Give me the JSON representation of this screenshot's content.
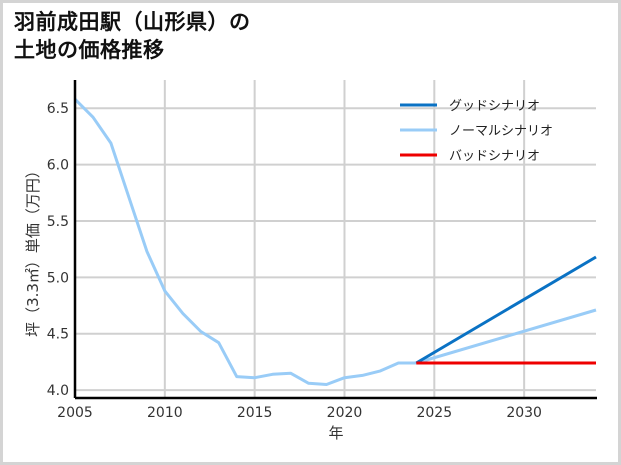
{
  "title_lines": [
    "羽前成田駅（山形県）の",
    "土地の価格推移"
  ],
  "chart_data": {
    "type": "line",
    "title": "羽前成田駅（山形県）の土地の価格推移",
    "xlabel": "年",
    "ylabel": "坪（3.3㎡）単価（万円）",
    "xlim": [
      2005,
      2034
    ],
    "ylim": [
      3.93,
      6.75
    ],
    "xticks": [
      2005,
      2010,
      2015,
      2020,
      2025,
      2030
    ],
    "yticks": [
      4.0,
      4.5,
      5.0,
      5.5,
      6.0,
      6.5
    ],
    "ytick_labels": [
      "4.0",
      "4.5",
      "5.0",
      "5.5",
      "6.0",
      "6.5"
    ],
    "grid": true,
    "legend_position": "upper right",
    "series": [
      {
        "name": "グッドシナリオ",
        "color": "#0a72c4",
        "x": [
          2024,
          2034
        ],
        "values": [
          4.24,
          5.18
        ]
      },
      {
        "name": "ノーマルシナリオ",
        "color": "#99ccf7",
        "x": [
          2005,
          2006,
          2007,
          2008,
          2009,
          2010,
          2011,
          2012,
          2013,
          2014,
          2015,
          2016,
          2017,
          2018,
          2019,
          2020,
          2021,
          2022,
          2023,
          2024,
          2034
        ],
        "values": [
          6.58,
          6.42,
          6.19,
          5.71,
          5.23,
          4.88,
          4.68,
          4.52,
          4.42,
          4.12,
          4.11,
          4.14,
          4.15,
          4.06,
          4.05,
          4.11,
          4.13,
          4.17,
          4.24,
          4.24,
          4.71
        ]
      },
      {
        "name": "バッドシナリオ",
        "color": "#ee0000",
        "x": [
          2024,
          2034
        ],
        "values": [
          4.24,
          4.24
        ]
      }
    ]
  }
}
